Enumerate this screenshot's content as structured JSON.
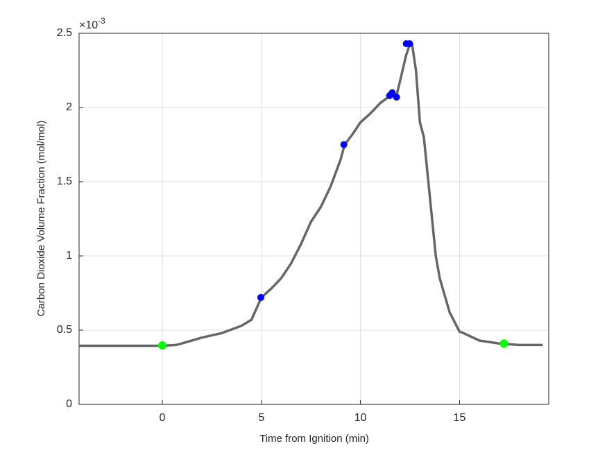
{
  "chart_data": {
    "type": "line",
    "xlabel": "Time from Ignition (min)",
    "ylabel": "Carbon Dioxide Volume Fraction (mol/mol)",
    "y_multiplier": {
      "base": "×10",
      "exponent": "-3"
    },
    "xlim": [
      -4.2,
      19.5
    ],
    "ylim": [
      0,
      2.5
    ],
    "xticks": [
      0,
      5,
      10,
      15
    ],
    "yticks": [
      0,
      0.5,
      1,
      1.5,
      2,
      2.5
    ],
    "grid": true,
    "series": [
      {
        "style": "line",
        "color": "#666666",
        "x": [
          -4.2,
          0,
          0.7,
          1.5,
          2,
          3,
          4,
          4.5,
          5,
          5.5,
          6,
          6.5,
          7,
          7.5,
          8,
          8.5,
          9,
          9.2,
          9.6,
          10,
          10.5,
          11,
          11.5,
          11.8,
          12,
          12.3,
          12.5,
          12.6,
          12.8,
          13,
          13.2,
          13.5,
          13.8,
          14,
          14.5,
          15,
          15.2,
          16,
          17,
          18,
          19.2
        ],
        "values": [
          0.395,
          0.395,
          0.4,
          0.43,
          0.45,
          0.48,
          0.53,
          0.57,
          0.72,
          0.78,
          0.85,
          0.95,
          1.08,
          1.23,
          1.33,
          1.47,
          1.65,
          1.75,
          1.82,
          1.9,
          1.96,
          2.03,
          2.08,
          2.07,
          2.18,
          2.35,
          2.43,
          2.43,
          2.25,
          1.9,
          1.8,
          1.4,
          1.0,
          0.85,
          0.62,
          0.49,
          0.48,
          0.43,
          0.41,
          0.4,
          0.4
        ]
      },
      {
        "style": "markers",
        "color": "#0000ff",
        "x": [
          4.97,
          9.16,
          11.47,
          11.6,
          11.82,
          12.31,
          12.48
        ],
        "values": [
          0.72,
          1.75,
          2.08,
          2.1,
          2.07,
          2.43,
          2.43
        ]
      },
      {
        "style": "markers",
        "color": "#00ff00",
        "x": [
          0,
          17.24
        ],
        "values": [
          0.397,
          0.41
        ]
      }
    ]
  }
}
